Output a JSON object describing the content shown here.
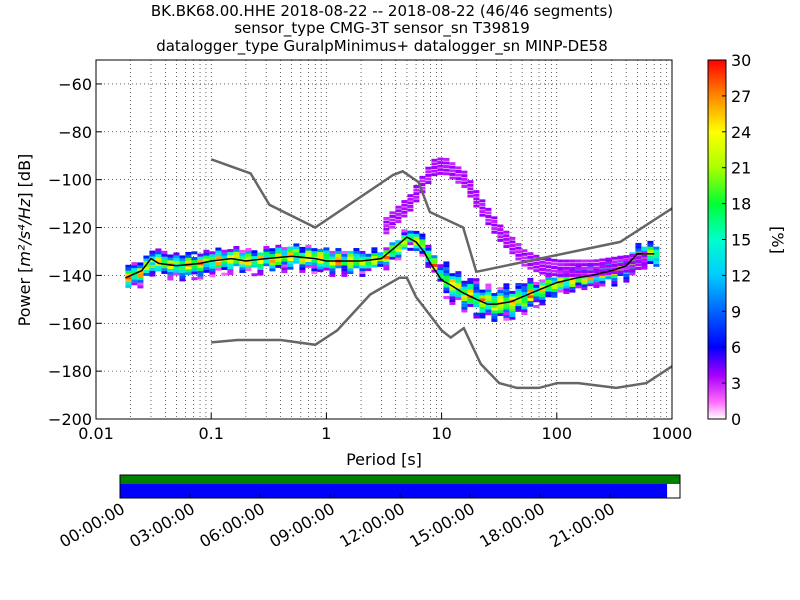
{
  "chart_data": {
    "type": "heatmap",
    "title_lines": [
      "BK.BK68.00.HHE   2018-08-22 -- 2018-08-22  (46/46 segments)",
      "sensor_type CMG-3T sensor_sn T39819",
      "datalogger_type GuralpMinimus+ datalogger_sn MINP-DE58"
    ],
    "xlabel": "Period [s]",
    "ylabel_prefix": "Power [",
    "ylabel_math": "m²/s⁴/Hz",
    "ylabel_suffix": "] [dB]",
    "xscale": "log",
    "xlim": [
      0.01,
      1000
    ],
    "ylim": [
      -200,
      -50
    ],
    "xticks": [
      0.01,
      0.1,
      1,
      10,
      100,
      1000
    ],
    "xtick_labels": [
      "0.01",
      "0.1",
      "1",
      "10",
      "100",
      "1000"
    ],
    "yticks": [
      -200,
      -180,
      -160,
      -140,
      -120,
      -100,
      -80,
      -60
    ],
    "ytick_labels": [
      "−200",
      "−180",
      "−160",
      "−140",
      "−120",
      "−100",
      "−80",
      "−60"
    ],
    "grid": true,
    "colorbar": {
      "label": "[%]",
      "range": [
        0,
        30
      ],
      "ticks": [
        0,
        3,
        6,
        9,
        12,
        15,
        18,
        21,
        24,
        27,
        30
      ],
      "tick_labels": [
        "0",
        "3",
        "6",
        "9",
        "12",
        "15",
        "18",
        "21",
        "24",
        "27",
        "30"
      ]
    },
    "mode_curve": {
      "period": [
        0.018,
        0.025,
        0.03,
        0.035,
        0.05,
        0.08,
        0.1,
        0.15,
        0.2,
        0.3,
        0.5,
        0.8,
        1,
        1.5,
        2,
        3,
        4,
        5,
        6,
        7,
        8,
        10,
        12,
        15,
        20,
        25,
        30,
        40,
        50,
        70,
        100,
        150,
        200,
        300,
        400,
        500,
        700
      ],
      "db": [
        -141,
        -138,
        -133,
        -135,
        -136,
        -135,
        -134,
        -133,
        -134,
        -133,
        -132,
        -133,
        -134,
        -134,
        -134,
        -133,
        -128,
        -124,
        -126,
        -130,
        -135,
        -142,
        -144,
        -147,
        -150,
        -152,
        -152,
        -151,
        -149,
        -146,
        -143,
        -141,
        -140,
        -138,
        -136,
        -131,
        -131
      ]
    },
    "secondary_mode": {
      "period": [
        3,
        5,
        8,
        10,
        15,
        20,
        30,
        50,
        70,
        100,
        200,
        400,
        600
      ],
      "db": [
        -120,
        -110,
        -95,
        -94,
        -100,
        -110,
        -122,
        -133,
        -136,
        -137,
        -137,
        -135,
        -133
      ]
    },
    "nlnm": {
      "period": [
        0.1,
        0.17,
        0.4,
        0.8,
        1.24,
        2.4,
        4.3,
        5,
        6,
        10,
        12,
        15.6,
        21.9,
        31.6,
        45,
        70,
        101,
        154,
        328,
        600,
        1000
      ],
      "db": [
        -168,
        -167,
        -167,
        -169,
        -163,
        -148,
        -141,
        -141,
        -149,
        -163,
        -166,
        -162,
        -177,
        -185,
        -187,
        -187,
        -185,
        -185,
        -187,
        -185,
        -178
      ]
    },
    "nhnm": {
      "period": [
        0.1,
        0.22,
        0.32,
        0.8,
        3.8,
        4.6,
        6.3,
        7.9,
        15.4,
        20,
        354.8,
        1000
      ],
      "db": [
        -91.5,
        -97.4,
        -110.5,
        -120,
        -98,
        -96.5,
        -101,
        -113.5,
        -120,
        -138.5,
        -126,
        -112
      ]
    },
    "nlnm_color": "#666666",
    "mode_color": "#000000"
  },
  "coverage": {
    "tick_labels": [
      "00:00:00",
      "03:00:00",
      "06:00:00",
      "09:00:00",
      "12:00:00",
      "15:00:00",
      "18:00:00",
      "21:00:00"
    ],
    "data_fraction": 0.977,
    "top_color": "#007f00",
    "bottom_color": "#0000ff"
  }
}
